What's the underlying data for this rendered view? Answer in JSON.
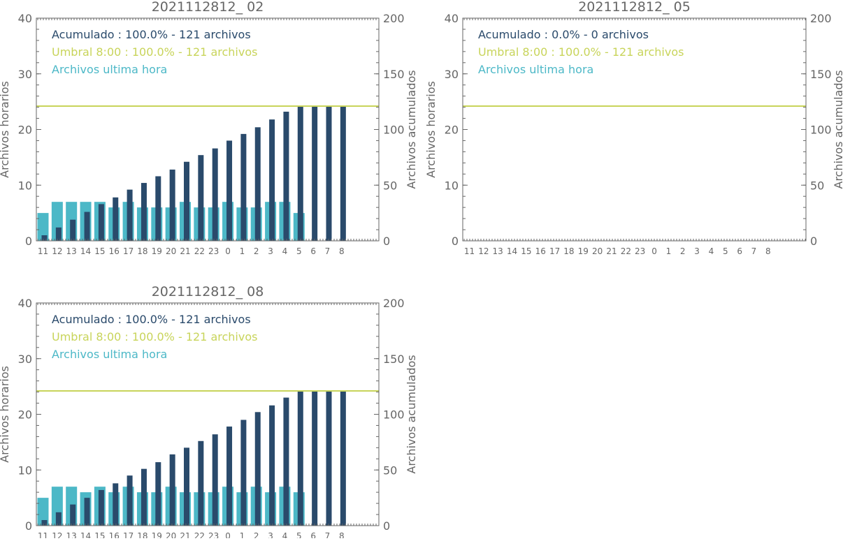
{
  "hours": [
    "11",
    "12",
    "13",
    "14",
    "15",
    "16",
    "17",
    "18",
    "19",
    "20",
    "21",
    "22",
    "23",
    "0",
    "1",
    "2",
    "3",
    "4",
    "5",
    "6",
    "7",
    "8"
  ],
  "colors": {
    "hourly": "#4cb8c7",
    "accumulated": "#2a4a6b",
    "threshold": "#c8d45a",
    "axis": "#666666"
  },
  "chart_data": [
    {
      "type": "bar",
      "title": "2021112812_ 02",
      "ylabel": "Archivos horarios",
      "y2label": "Archivos acumulados",
      "ylim": [
        0,
        40
      ],
      "y2lim": [
        0,
        200
      ],
      "yticks": [
        "0",
        "10",
        "20",
        "30",
        "40"
      ],
      "y2ticks": [
        "0",
        "50",
        "100",
        "150",
        "200"
      ],
      "legend": [
        "Acumulado : 100.0% - 121 archivos",
        "Umbral 8:00 : 100.0% - 121 archivos",
        "Archivos ultima hora"
      ],
      "threshold": 121,
      "series": [
        {
          "name": "Archivos ultima hora",
          "axis": "left",
          "values": [
            5,
            7,
            7,
            7,
            7,
            6,
            7,
            6,
            6,
            6,
            7,
            6,
            6,
            7,
            6,
            6,
            7,
            7,
            5,
            0,
            0,
            0
          ]
        },
        {
          "name": "Acumulado",
          "axis": "right",
          "values": [
            5,
            12,
            19,
            26,
            33,
            39,
            46,
            52,
            58,
            64,
            71,
            77,
            83,
            90,
            96,
            102,
            109,
            116,
            121,
            121,
            121,
            121
          ]
        }
      ]
    },
    {
      "type": "bar",
      "title": "2021112812_ 05",
      "ylabel": "Archivos horarios",
      "y2label": "Archivos acumulados",
      "ylim": [
        0,
        40
      ],
      "y2lim": [
        0,
        200
      ],
      "yticks": [
        "0",
        "10",
        "20",
        "30",
        "40"
      ],
      "y2ticks": [
        "0",
        "50",
        "100",
        "150",
        "200"
      ],
      "legend": [
        "Acumulado : 0.0% - 0 archivos",
        "Umbral 8:00 : 100.0% - 121 archivos",
        "Archivos ultima hora"
      ],
      "threshold": 121,
      "series": [
        {
          "name": "Archivos ultima hora",
          "axis": "left",
          "values": [
            0,
            0,
            0,
            0,
            0,
            0,
            0,
            0,
            0,
            0,
            0,
            0,
            0,
            0,
            0,
            0,
            0,
            0,
            0,
            0,
            0,
            0
          ]
        },
        {
          "name": "Acumulado",
          "axis": "right",
          "values": [
            0,
            0,
            0,
            0,
            0,
            0,
            0,
            0,
            0,
            0,
            0,
            0,
            0,
            0,
            0,
            0,
            0,
            0,
            0,
            0,
            0,
            0
          ]
        }
      ]
    },
    {
      "type": "bar",
      "title": "2021112812_ 08",
      "ylabel": "Archivos horarios",
      "y2label": "Archivos acumulados",
      "ylim": [
        0,
        40
      ],
      "y2lim": [
        0,
        200
      ],
      "yticks": [
        "0",
        "10",
        "20",
        "30",
        "40"
      ],
      "y2ticks": [
        "0",
        "50",
        "100",
        "150",
        "200"
      ],
      "legend": [
        "Acumulado : 100.0% - 121 archivos",
        "Umbral 8:00 : 100.0% - 121 archivos",
        "Archivos ultima hora"
      ],
      "threshold": 121,
      "series": [
        {
          "name": "Archivos ultima hora",
          "axis": "left",
          "values": [
            5,
            7,
            7,
            6,
            7,
            6,
            7,
            6,
            6,
            7,
            6,
            6,
            6,
            7,
            6,
            7,
            6,
            7,
            6,
            0,
            0,
            0
          ]
        },
        {
          "name": "Acumulado",
          "axis": "right",
          "values": [
            5,
            12,
            19,
            25,
            32,
            38,
            45,
            51,
            57,
            64,
            70,
            76,
            82,
            89,
            95,
            102,
            108,
            115,
            121,
            121,
            121,
            121
          ]
        }
      ]
    }
  ]
}
